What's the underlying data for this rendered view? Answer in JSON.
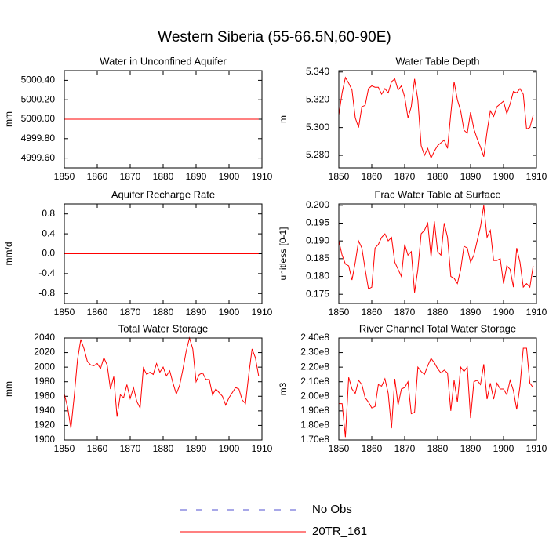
{
  "title": "Western Siberia (55-66.5N,60-90E)",
  "legend": [
    {
      "label": "No Obs",
      "color": "#5050d0",
      "dash": true
    },
    {
      "label": "20TR_161",
      "color": "#ff0000",
      "dash": false
    }
  ],
  "chart_data": [
    {
      "type": "line",
      "title": "Water in Unconfined Aquifer",
      "ylabel": "mm",
      "x": [
        1850,
        1851,
        1852,
        1853,
        1854,
        1855,
        1856,
        1857,
        1858,
        1859,
        1860,
        1861,
        1862,
        1863,
        1864,
        1865,
        1866,
        1867,
        1868,
        1869,
        1870,
        1871,
        1872,
        1873,
        1874,
        1875,
        1876,
        1877,
        1878,
        1879,
        1880,
        1881,
        1882,
        1883,
        1884,
        1885,
        1886,
        1887,
        1888,
        1889,
        1890,
        1891,
        1892,
        1893,
        1894,
        1895,
        1896,
        1897,
        1898,
        1899,
        1900,
        1901,
        1902,
        1903,
        1904,
        1905,
        1906,
        1907,
        1908,
        1909
      ],
      "series": [
        {
          "color": "#ff0000",
          "values": [
            5000,
            5000,
            5000,
            5000,
            5000,
            5000,
            5000,
            5000,
            5000,
            5000,
            5000,
            5000,
            5000,
            5000,
            5000,
            5000,
            5000,
            5000,
            5000,
            5000,
            5000,
            5000,
            5000,
            5000,
            5000,
            5000,
            5000,
            5000,
            5000,
            5000,
            5000,
            5000,
            5000,
            5000,
            5000,
            5000,
            5000,
            5000,
            5000,
            5000,
            5000,
            5000,
            5000,
            5000,
            5000,
            5000,
            5000,
            5000,
            5000,
            5000,
            5000,
            5000,
            5000,
            5000,
            5000,
            5000,
            5000,
            5000,
            5000,
            5000
          ]
        }
      ],
      "xlim": [
        1850,
        1910
      ],
      "xticks": [
        1850,
        1860,
        1870,
        1880,
        1890,
        1900,
        1910
      ],
      "ylim": [
        4999.5,
        5000.5
      ],
      "yticks": [
        {
          "value": 4999.6,
          "label": "4999.60"
        },
        {
          "value": 4999.8,
          "label": "4999.80"
        },
        {
          "value": 5000,
          "label": "5000.00"
        },
        {
          "value": 5000.2,
          "label": "5000.20"
        },
        {
          "value": 5000.4,
          "label": "5000.40"
        }
      ]
    },
    {
      "type": "line",
      "title": "Water Table Depth",
      "ylabel": "m",
      "x": [
        1850,
        1851,
        1852,
        1853,
        1854,
        1855,
        1856,
        1857,
        1858,
        1859,
        1860,
        1861,
        1862,
        1863,
        1864,
        1865,
        1866,
        1867,
        1868,
        1869,
        1870,
        1871,
        1872,
        1873,
        1874,
        1875,
        1876,
        1877,
        1878,
        1879,
        1880,
        1881,
        1882,
        1883,
        1884,
        1885,
        1886,
        1887,
        1888,
        1889,
        1890,
        1891,
        1892,
        1893,
        1894,
        1895,
        1896,
        1897,
        1898,
        1899,
        1900,
        1901,
        1902,
        1903,
        1904,
        1905,
        1906,
        1907,
        1908,
        1909
      ],
      "series": [
        {
          "color": "#ff0000",
          "values": [
            5.309,
            5.325,
            5.336,
            5.332,
            5.327,
            5.307,
            5.3,
            5.315,
            5.316,
            5.328,
            5.33,
            5.329,
            5.329,
            5.324,
            5.328,
            5.325,
            5.333,
            5.335,
            5.327,
            5.33,
            5.322,
            5.307,
            5.315,
            5.335,
            5.32,
            5.287,
            5.28,
            5.285,
            5.278,
            5.283,
            5.287,
            5.289,
            5.291,
            5.285,
            5.31,
            5.333,
            5.32,
            5.312,
            5.298,
            5.296,
            5.311,
            5.299,
            5.292,
            5.286,
            5.279,
            5.297,
            5.312,
            5.308,
            5.315,
            5.317,
            5.319,
            5.31,
            5.317,
            5.326,
            5.325,
            5.328,
            5.324,
            5.299,
            5.3,
            5.309
          ]
        }
      ],
      "xlim": [
        1850,
        1910
      ],
      "xticks": [
        1850,
        1860,
        1870,
        1880,
        1890,
        1900,
        1910
      ],
      "ylim": [
        5.271,
        5.341
      ],
      "yticks": [
        {
          "value": 5.28,
          "label": "5.280"
        },
        {
          "value": 5.3,
          "label": "5.300"
        },
        {
          "value": 5.32,
          "label": "5.320"
        },
        {
          "value": 5.34,
          "label": "5.340"
        }
      ]
    },
    {
      "type": "line",
      "title": "Aquifer Recharge Rate",
      "ylabel": "mm/d",
      "x": [
        1850,
        1851,
        1852,
        1853,
        1854,
        1855,
        1856,
        1857,
        1858,
        1859,
        1860,
        1861,
        1862,
        1863,
        1864,
        1865,
        1866,
        1867,
        1868,
        1869,
        1870,
        1871,
        1872,
        1873,
        1874,
        1875,
        1876,
        1877,
        1878,
        1879,
        1880,
        1881,
        1882,
        1883,
        1884,
        1885,
        1886,
        1887,
        1888,
        1889,
        1890,
        1891,
        1892,
        1893,
        1894,
        1895,
        1896,
        1897,
        1898,
        1899,
        1900,
        1901,
        1902,
        1903,
        1904,
        1905,
        1906,
        1907,
        1908,
        1909
      ],
      "series": [
        {
          "color": "#ff0000",
          "values": [
            0,
            0,
            0,
            0,
            0,
            0,
            0,
            0,
            0,
            0,
            0,
            0,
            0,
            0,
            0,
            0,
            0,
            0,
            0,
            0,
            0,
            0,
            0,
            0,
            0,
            0,
            0,
            0,
            0,
            0,
            0,
            0,
            0,
            0,
            0,
            0,
            0,
            0,
            0,
            0,
            0,
            0,
            0,
            0,
            0,
            0,
            0,
            0,
            0,
            0,
            0,
            0,
            0,
            0,
            0,
            0,
            0,
            0,
            0,
            0
          ]
        }
      ],
      "xlim": [
        1850,
        1910
      ],
      "xticks": [
        1850,
        1860,
        1870,
        1880,
        1890,
        1900,
        1910
      ],
      "ylim": [
        -1,
        1
      ],
      "yticks": [
        -0.8,
        -0.4,
        {
          "value": 0,
          "label": "0.0"
        },
        0.4,
        0.8
      ]
    },
    {
      "type": "line",
      "title": "Frac Water Table at Surface",
      "ylabel": "unitless [0-1]",
      "x": [
        1850,
        1851,
        1852,
        1853,
        1854,
        1855,
        1856,
        1857,
        1858,
        1859,
        1860,
        1861,
        1862,
        1863,
        1864,
        1865,
        1866,
        1867,
        1868,
        1869,
        1870,
        1871,
        1872,
        1873,
        1874,
        1875,
        1876,
        1877,
        1878,
        1879,
        1880,
        1881,
        1882,
        1883,
        1884,
        1885,
        1886,
        1887,
        1888,
        1889,
        1890,
        1891,
        1892,
        1893,
        1894,
        1895,
        1896,
        1897,
        1898,
        1899,
        1900,
        1901,
        1902,
        1903,
        1904,
        1905,
        1906,
        1907,
        1908,
        1909
      ],
      "series": [
        {
          "color": "#ff0000",
          "values": [
            0.19,
            0.186,
            0.1835,
            0.183,
            0.179,
            0.184,
            0.19,
            0.188,
            0.182,
            0.1765,
            0.177,
            0.188,
            0.189,
            0.191,
            0.192,
            0.19,
            0.191,
            0.184,
            0.182,
            0.18,
            0.189,
            0.186,
            0.187,
            0.1755,
            0.182,
            0.192,
            0.193,
            0.195,
            0.1855,
            0.1955,
            0.187,
            0.186,
            0.195,
            0.191,
            0.18,
            0.1795,
            0.178,
            0.182,
            0.1885,
            0.188,
            0.184,
            0.186,
            0.19,
            0.194,
            0.2,
            0.191,
            0.193,
            0.1845,
            0.1845,
            0.185,
            0.178,
            0.183,
            0.182,
            0.177,
            0.188,
            0.184,
            0.177,
            0.178,
            0.177,
            0.183
          ]
        }
      ],
      "xlim": [
        1850,
        1910
      ],
      "xticks": [
        1850,
        1860,
        1870,
        1880,
        1890,
        1900,
        1910
      ],
      "ylim": [
        0.1724,
        0.2004
      ],
      "yticks": [
        0.175,
        {
          "value": 0.18,
          "label": "0.180"
        },
        0.185,
        {
          "value": 0.19,
          "label": "0.190"
        },
        0.195,
        {
          "value": 0.2,
          "label": "0.200"
        }
      ]
    },
    {
      "type": "line",
      "title": "Total Water Storage",
      "ylabel": "mm",
      "x": [
        1850,
        1851,
        1852,
        1853,
        1854,
        1855,
        1856,
        1857,
        1858,
        1859,
        1860,
        1861,
        1862,
        1863,
        1864,
        1865,
        1866,
        1867,
        1868,
        1869,
        1870,
        1871,
        1872,
        1873,
        1874,
        1875,
        1876,
        1877,
        1878,
        1879,
        1880,
        1881,
        1882,
        1883,
        1884,
        1885,
        1886,
        1887,
        1888,
        1889,
        1890,
        1891,
        1892,
        1893,
        1894,
        1895,
        1896,
        1897,
        1898,
        1899,
        1900,
        1901,
        1902,
        1903,
        1904,
        1905,
        1906,
        1907,
        1908,
        1909
      ],
      "series": [
        {
          "color": "#ff0000",
          "values": [
            1963,
            1945,
            1916,
            1960,
            2010,
            2038,
            2025,
            2008,
            2003,
            2002,
            2005,
            1998,
            2013,
            2003,
            1970,
            1987,
            1932,
            1962,
            1958,
            1976,
            1957,
            1972,
            1953,
            1944,
            1999,
            1990,
            1993,
            1990,
            2005,
            1993,
            2000,
            1988,
            1995,
            1978,
            1963,
            1975,
            1997,
            2022,
            2040,
            2025,
            1980,
            1990,
            1992,
            1983,
            1983,
            1962,
            1970,
            1965,
            1960,
            1948,
            1958,
            1965,
            1972,
            1970,
            1955,
            1950,
            1990,
            2025,
            2013,
            1988
          ]
        }
      ],
      "xlim": [
        1850,
        1910
      ],
      "xticks": [
        1850,
        1860,
        1870,
        1880,
        1890,
        1900,
        1910
      ],
      "ylim": [
        1900,
        2040
      ],
      "yticks": [
        1900,
        1920,
        1940,
        1960,
        1980,
        2000,
        2020,
        2040
      ]
    },
    {
      "type": "line",
      "title": "River Channel Total Water Storage",
      "ylabel": "m3",
      "x": [
        1850,
        1851,
        1852,
        1853,
        1854,
        1855,
        1856,
        1857,
        1858,
        1859,
        1860,
        1861,
        1862,
        1863,
        1864,
        1865,
        1866,
        1867,
        1868,
        1869,
        1870,
        1871,
        1872,
        1873,
        1874,
        1875,
        1876,
        1877,
        1878,
        1879,
        1880,
        1881,
        1882,
        1883,
        1884,
        1885,
        1886,
        1887,
        1888,
        1889,
        1890,
        1891,
        1892,
        1893,
        1894,
        1895,
        1896,
        1897,
        1898,
        1899,
        1900,
        1901,
        1902,
        1903,
        1904,
        1905,
        1906,
        1907,
        1908,
        1909
      ],
      "series": [
        {
          "color": "#ff0000",
          "values": [
            195000000,
            195000000,
            172000000,
            213000000,
            205000000,
            202000000,
            211000000,
            208000000,
            199000000,
            196000000,
            192000000,
            193000000,
            208000000,
            207000000,
            212000000,
            202000000,
            178000000,
            212000000,
            194000000,
            205000000,
            206000000,
            210000000,
            188000000,
            189000000,
            220000000,
            217000000,
            215000000,
            221000000,
            226000000,
            223000000,
            219000000,
            216000000,
            218000000,
            216000000,
            190000000,
            211000000,
            196000000,
            220000000,
            217000000,
            220000000,
            185000000,
            210000000,
            211000000,
            208000000,
            222000000,
            198000000,
            209000000,
            198000000,
            209000000,
            205000000,
            205000000,
            201000000,
            211000000,
            204000000,
            191000000,
            207000000,
            233000000,
            233000000,
            209000000,
            206000000
          ]
        }
      ],
      "xlim": [
        1850,
        1910
      ],
      "xticks": [
        1850,
        1860,
        1870,
        1880,
        1890,
        1900,
        1910
      ],
      "ylim": [
        170000000,
        240000000
      ],
      "yticks": [
        {
          "value": 170000000,
          "label": "1.70e8"
        },
        {
          "value": 180000000,
          "label": "1.80e8"
        },
        {
          "value": 190000000,
          "label": "1.90e8"
        },
        {
          "value": 200000000,
          "label": "2.00e8"
        },
        {
          "value": 210000000,
          "label": "2.10e8"
        },
        {
          "value": 220000000,
          "label": "2.20e8"
        },
        {
          "value": 230000000,
          "label": "2.30e8"
        },
        {
          "value": 240000000,
          "label": "2.40e8"
        }
      ]
    }
  ]
}
